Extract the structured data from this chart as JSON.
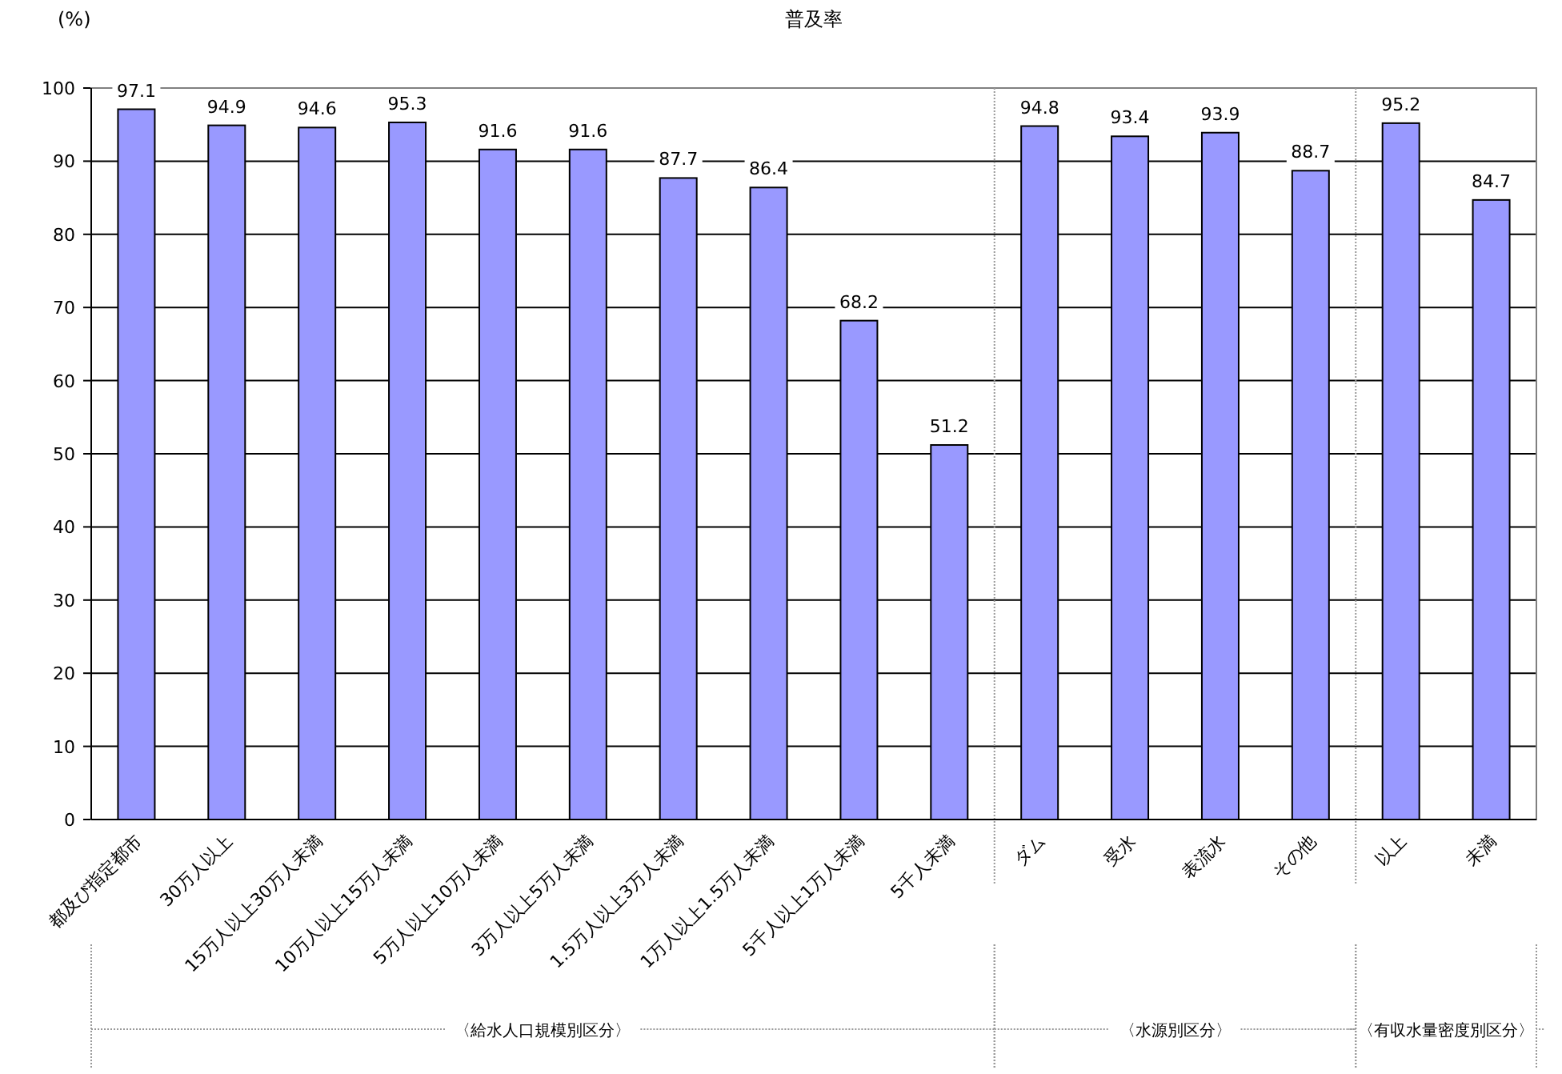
{
  "chart_data": {
    "type": "bar",
    "title": "普及率",
    "ylabel": "(%)",
    "categories": [
      "都及び指定都市",
      "30万人以上",
      "15万人以上30万人未満",
      "10万人以上15万人未満",
      "5万人以上10万人未満",
      "3万人以上5万人未満",
      "1.5万人以上3万人未満",
      "1万人以上1.5万人未満",
      "5千人以上1万人未満",
      "5千人未満",
      "ダム",
      "受水",
      "表流水",
      "その他",
      "以上",
      "未満"
    ],
    "values": [
      97.1,
      94.9,
      94.6,
      95.3,
      91.6,
      91.6,
      87.7,
      86.4,
      68.2,
      51.2,
      94.8,
      93.4,
      93.9,
      88.7,
      95.2,
      84.7
    ],
    "color": "#9999ff",
    "data_labels": true,
    "grid": "y",
    "ylim": [
      0,
      100
    ],
    "yticks": [
      0,
      10,
      20,
      30,
      40,
      50,
      60,
      70,
      80,
      90,
      100
    ],
    "annotations": [
      "〈給水人口規模別区分〉",
      "〈水源別区分〉",
      "〈有収水量密度別区分〉"
    ]
  }
}
